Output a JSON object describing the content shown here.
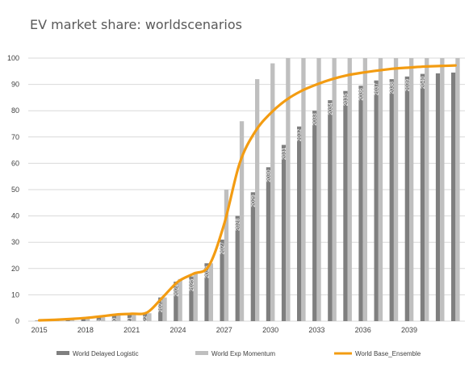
{
  "chart_data": {
    "type": "bar",
    "title": "EV market share: worldscenarios",
    "xlabel": "",
    "ylabel": "",
    "ylim": [
      0,
      100
    ],
    "y_ticks": [
      0,
      10,
      20,
      30,
      40,
      50,
      60,
      70,
      80,
      90,
      100
    ],
    "x_tick_labels": [
      "2015",
      "2018",
      "2021",
      "2024",
      "2027",
      "2030",
      "2033",
      "2036",
      "2039"
    ],
    "grid": "horizontal",
    "legend_position": "bottom",
    "categories": [
      "2015",
      "2016",
      "2017",
      "2018",
      "2019",
      "2020",
      "2021",
      "2022",
      "2023",
      "2024",
      "2025",
      "2026",
      "2027",
      "2028",
      "2029",
      "2030",
      "2031",
      "2032",
      "2033",
      "2034",
      "2035",
      "2036",
      "2037",
      "2038",
      "2039",
      "2040",
      "2041",
      "2042"
    ],
    "series": [
      {
        "name": "World Delayed Logistic",
        "kind": "bar",
        "color": "#7f7f7f",
        "values": [
          0.2,
          0.4,
          0.6,
          1.0,
          1.5,
          2.2,
          2.5,
          3.0,
          9.0,
          15.0,
          17.0,
          22.0,
          31.0,
          40.0,
          49.0,
          58.5,
          67.0,
          74.0,
          80.0,
          84.0,
          87.5,
          89.5,
          91.5,
          92.0,
          93.0,
          94.0,
          94.2,
          94.5
        ],
        "labeled": [
          "2019",
          "2020",
          "2021",
          "2022",
          "2023",
          "2024",
          "2025",
          "2026",
          "2027",
          "2028",
          "2029",
          "2030",
          "2031",
          "2032",
          "2033",
          "2034",
          "2035",
          "2036",
          "2037",
          "2038",
          "2039",
          "2040"
        ]
      },
      {
        "name": "World Exp Momentum",
        "kind": "bar",
        "color": "#bfbfbf",
        "values": [
          0.2,
          0.4,
          0.6,
          1.0,
          1.5,
          2.2,
          2.5,
          3.0,
          9.0,
          16.0,
          18.5,
          22.0,
          50.0,
          76.0,
          92.0,
          98.0,
          100,
          100,
          100,
          100,
          100,
          100,
          100,
          100,
          100,
          100,
          100,
          100
        ]
      },
      {
        "name": "World Base_Ensemble",
        "kind": "line",
        "color": "#f39c12",
        "values": [
          0.3,
          0.5,
          0.8,
          1.2,
          1.8,
          2.5,
          2.8,
          3.3,
          9.0,
          15.0,
          18.0,
          21.0,
          37.0,
          60.0,
          72.0,
          79.0,
          84.0,
          87.5,
          90.0,
          92.0,
          93.5,
          94.5,
          95.3,
          96.0,
          96.4,
          96.8,
          97.0,
          97.2
        ]
      }
    ]
  }
}
